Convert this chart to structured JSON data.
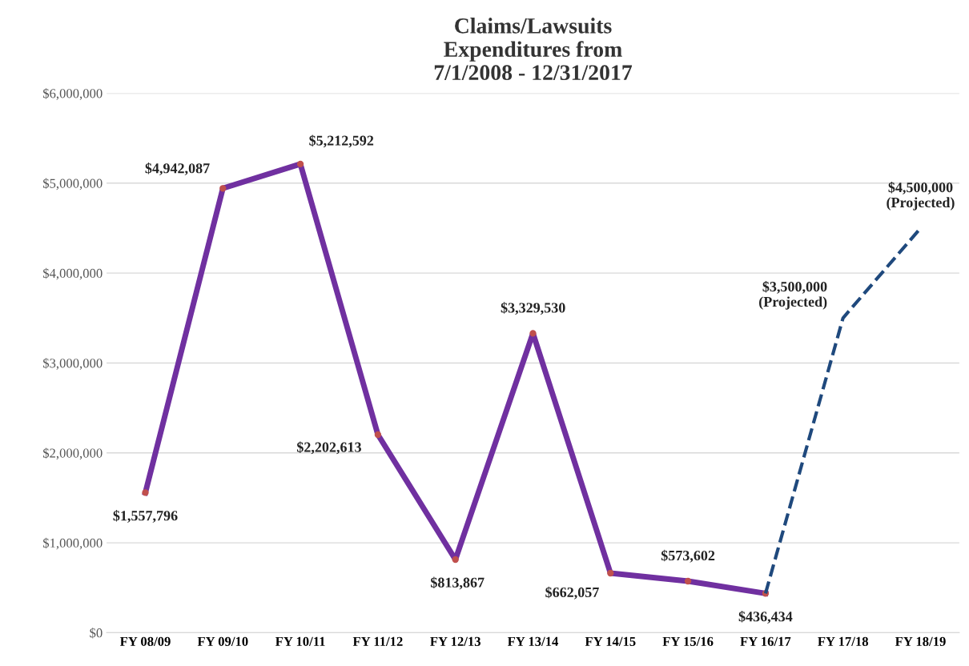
{
  "chart_data": {
    "type": "line",
    "title": "Claims/Lawsuits\nExpenditures from\n7/1/2008 - 12/31/2017",
    "categories": [
      "FY 08/09",
      "FY 09/10",
      "FY 10/11",
      "FY 11/12",
      "FY 12/13",
      "FY 13/14",
      "FY 14/15",
      "FY 15/16",
      "FY 16/17",
      "FY 17/18",
      "FY 18/19"
    ],
    "series": [
      {
        "color": "#7030a0",
        "marker": "circle",
        "line_style": "solid",
        "values": [
          1557796,
          4942087,
          5212592,
          2202613,
          813867,
          3329530,
          662057,
          573602,
          436434,
          null,
          null
        ],
        "value_labels": [
          "$1,557,796",
          "$4,942,087",
          "$5,212,592",
          "$2,202,613",
          "$813,867",
          "$3,329,530",
          "$662,057",
          "$573,602",
          "$436,434",
          null,
          null
        ]
      },
      {
        "color": "#1f497d",
        "marker": "none",
        "line_style": "dashed",
        "values": [
          null,
          null,
          null,
          null,
          null,
          null,
          null,
          null,
          436434,
          3500000,
          4500000
        ],
        "value_labels": [
          null,
          null,
          null,
          null,
          null,
          null,
          null,
          null,
          null,
          "$3,500,000\n(Projected)",
          "$4,500,000\n(Projected)"
        ]
      }
    ],
    "ylim": [
      0,
      6000000
    ],
    "yticks": [
      {
        "value": 0,
        "label": "$0"
      },
      {
        "value": 1000000,
        "label": "$1,000,000"
      },
      {
        "value": 2000000,
        "label": "$2,000,000"
      },
      {
        "value": 3000000,
        "label": "$3,000,000"
      },
      {
        "value": 4000000,
        "label": "$4,000,000"
      },
      {
        "value": 5000000,
        "label": "$5,000,000"
      },
      {
        "value": 6000000,
        "label": "$6,000,000"
      }
    ],
    "grid": "y",
    "legend": false
  }
}
